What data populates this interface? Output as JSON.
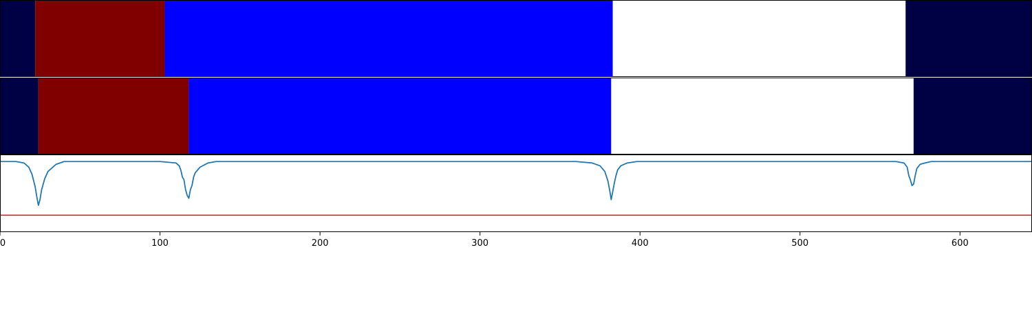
{
  "chart_data": {
    "type": "area",
    "xlim": [
      0,
      645
    ],
    "x_ticks": [
      0,
      100,
      200,
      300,
      400,
      500,
      600
    ],
    "grid": false,
    "segment_tracks": [
      {
        "segments": [
          {
            "start": 0,
            "end": 22,
            "color": "#000044"
          },
          {
            "start": 22,
            "end": 103,
            "color": "#800000"
          },
          {
            "start": 103,
            "end": 383,
            "color": "#0000ff"
          },
          {
            "start": 383,
            "end": 566,
            "color": "#ffffff"
          },
          {
            "start": 566,
            "end": 645,
            "color": "#000044"
          }
        ]
      },
      {
        "segments": [
          {
            "start": 0,
            "end": 24,
            "color": "#000044"
          },
          {
            "start": 24,
            "end": 118,
            "color": "#800000"
          },
          {
            "start": 118,
            "end": 382,
            "color": "#0000ff"
          },
          {
            "start": 382,
            "end": 571,
            "color": "#ffffff"
          },
          {
            "start": 571,
            "end": 645,
            "color": "#000044"
          }
        ]
      }
    ],
    "signal": {
      "color": "#1f77b4",
      "ylim": [
        -0.5,
        0.05
      ],
      "baseline": 0,
      "x": [
        0,
        10,
        15,
        18,
        20,
        22,
        23,
        24,
        25,
        26,
        28,
        30,
        35,
        40,
        100,
        110,
        112,
        113,
        114,
        115,
        116,
        117,
        118,
        119,
        120,
        121,
        122,
        125,
        130,
        135,
        360,
        370,
        375,
        378,
        380,
        381,
        382,
        383,
        384,
        385,
        386,
        388,
        392,
        398,
        560,
        565,
        567,
        568,
        569,
        570,
        571,
        572,
        573,
        575,
        578,
        582,
        645
      ],
      "y": [
        0,
        0,
        -0.01,
        -0.04,
        -0.09,
        -0.18,
        -0.25,
        -0.31,
        -0.27,
        -0.2,
        -0.12,
        -0.07,
        -0.02,
        0,
        0,
        -0.01,
        -0.03,
        -0.06,
        -0.11,
        -0.13,
        -0.2,
        -0.24,
        -0.26,
        -0.2,
        -0.17,
        -0.11,
        -0.08,
        -0.04,
        -0.01,
        0,
        0,
        -0.01,
        -0.03,
        -0.07,
        -0.14,
        -0.2,
        -0.27,
        -0.21,
        -0.15,
        -0.1,
        -0.06,
        -0.03,
        -0.01,
        0,
        0,
        -0.01,
        -0.04,
        -0.1,
        -0.13,
        -0.17,
        -0.16,
        -0.1,
        -0.05,
        -0.02,
        -0.01,
        0,
        0
      ]
    },
    "threshold": {
      "value": -0.38,
      "color": "#ff0000"
    }
  }
}
